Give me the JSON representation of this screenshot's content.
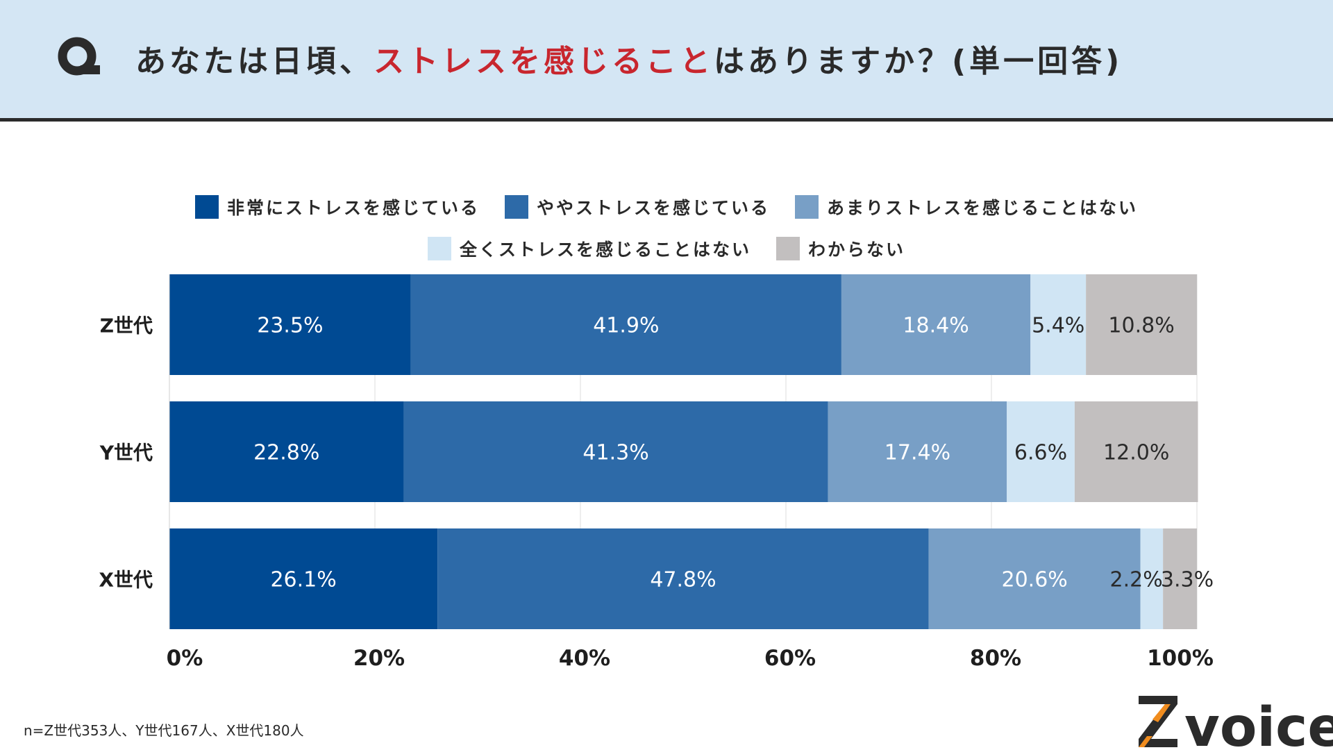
{
  "header": {
    "q_letter": "Q",
    "question_before": "あなたは日頃、",
    "question_highlight": "ストレスを感じること",
    "question_after": "はありますか？(単一回答)"
  },
  "chart_data": {
    "type": "bar",
    "orientation": "horizontal",
    "stacked": true,
    "categories": [
      "Z世代",
      "Y世代",
      "X世代"
    ],
    "series": [
      {
        "name": "非常にストレスを感じている",
        "color": "#004a93",
        "values": [
          23.5,
          22.8,
          26.1
        ]
      },
      {
        "name": "ややストレスを感じている",
        "color": "#2d6aa8",
        "values": [
          41.9,
          41.3,
          47.8
        ]
      },
      {
        "name": "あまりストレスを感じることはない",
        "color": "#789fc6",
        "values": [
          18.4,
          17.4,
          20.6
        ]
      },
      {
        "name": "全くストレスを感じることはない",
        "color": "#d0e5f4",
        "values": [
          5.4,
          6.6,
          2.2
        ]
      },
      {
        "name": "わからない",
        "color": "#c2bfbf",
        "values": [
          10.8,
          12.0,
          3.3
        ]
      }
    ],
    "value_labels": [
      [
        "23.5%",
        "41.9%",
        "18.4%",
        "5.4%",
        "10.8%"
      ],
      [
        "22.8%",
        "41.3%",
        "17.4%",
        "6.6%",
        "12.0%"
      ],
      [
        "26.1%",
        "47.8%",
        "20.6%",
        "2.2%",
        "3.3%"
      ]
    ],
    "x_ticks": [
      "0%",
      "20%",
      "40%",
      "60%",
      "80%",
      "100%"
    ],
    "xlim": [
      0,
      100
    ],
    "legend_position": "top-center",
    "grid": true
  },
  "note": "n=Z世代353人、Y世代167人、X世代180人",
  "logo": {
    "letter": "Z",
    "word": "voice",
    "accent": "#f08c1e"
  }
}
